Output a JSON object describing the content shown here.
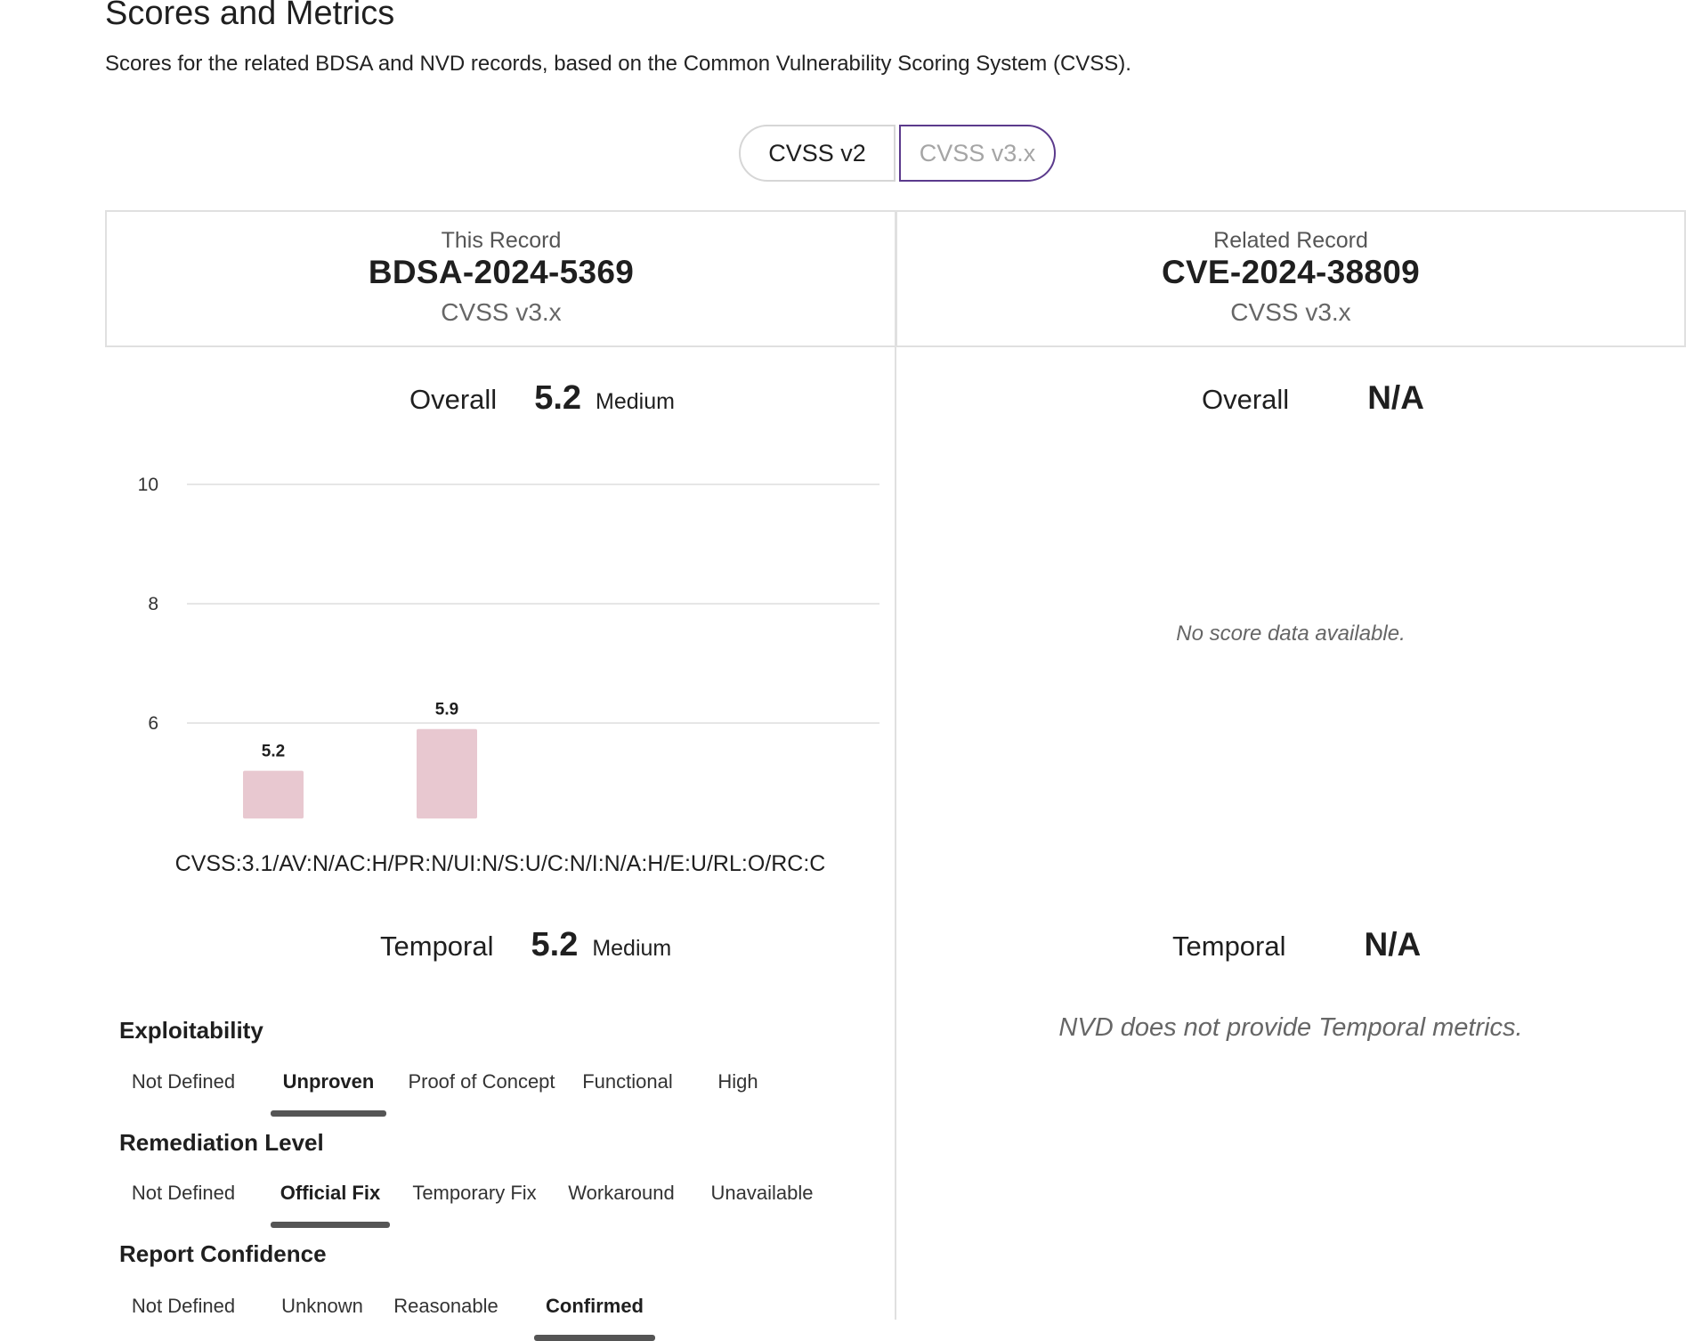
{
  "page": {
    "title": "Scores and Metrics",
    "subtitle": "Scores for the related BDSA and NVD records, based on the Common Vulnerability Scoring System (CVSS)."
  },
  "toggle": {
    "v2_label": "CVSS v2",
    "v3_label": "CVSS v3.x",
    "selected": "CVSS v3.x"
  },
  "this_record": {
    "label": "This Record",
    "id": "BDSA-2024-5369",
    "version": "CVSS v3.x",
    "overall_label": "Overall",
    "overall_score": "5.2",
    "overall_severity": "Medium",
    "vector": "CVSS:3.1/AV:N/AC:H/PR:N/UI:N/S:U/C:N/I:N/A:H/E:U/RL:O/RC:C",
    "temporal_label": "Temporal",
    "temporal_score": "5.2",
    "temporal_severity": "Medium"
  },
  "related_record": {
    "label": "Related Record",
    "id": "CVE-2024-38809",
    "version": "CVSS v3.x",
    "overall_label": "Overall",
    "overall_score": "N/A",
    "no_data": "No score data available.",
    "temporal_label": "Temporal",
    "temporal_score": "N/A",
    "temporal_note": "NVD does not provide Temporal metrics."
  },
  "chart_data": {
    "type": "bar",
    "categories": [
      "",
      ""
    ],
    "values": [
      5.2,
      5.9
    ],
    "data_labels": [
      "5.2",
      "5.9"
    ],
    "y_ticks": [
      "6",
      "8",
      "10"
    ],
    "ylim": [
      4.4,
      10
    ],
    "grid": true,
    "bar_color": "#e8c8d0",
    "grid_color": "#e6e6e6"
  },
  "metrics": [
    {
      "title": "Exploitability",
      "options": [
        "Not Defined",
        "Unproven",
        "Proof of Concept",
        "Functional",
        "High"
      ],
      "selected": "Unproven"
    },
    {
      "title": "Remediation Level",
      "options": [
        "Not Defined",
        "Official Fix",
        "Temporary Fix",
        "Workaround",
        "Unavailable"
      ],
      "selected": "Official Fix"
    },
    {
      "title": "Report Confidence",
      "options": [
        "Not Defined",
        "Unknown",
        "Reasonable",
        "Confirmed"
      ],
      "selected": "Confirmed"
    }
  ],
  "colors": {
    "accent": "#5b3a8c",
    "border": "#e0e0e0",
    "selected_underline": "#555555"
  }
}
